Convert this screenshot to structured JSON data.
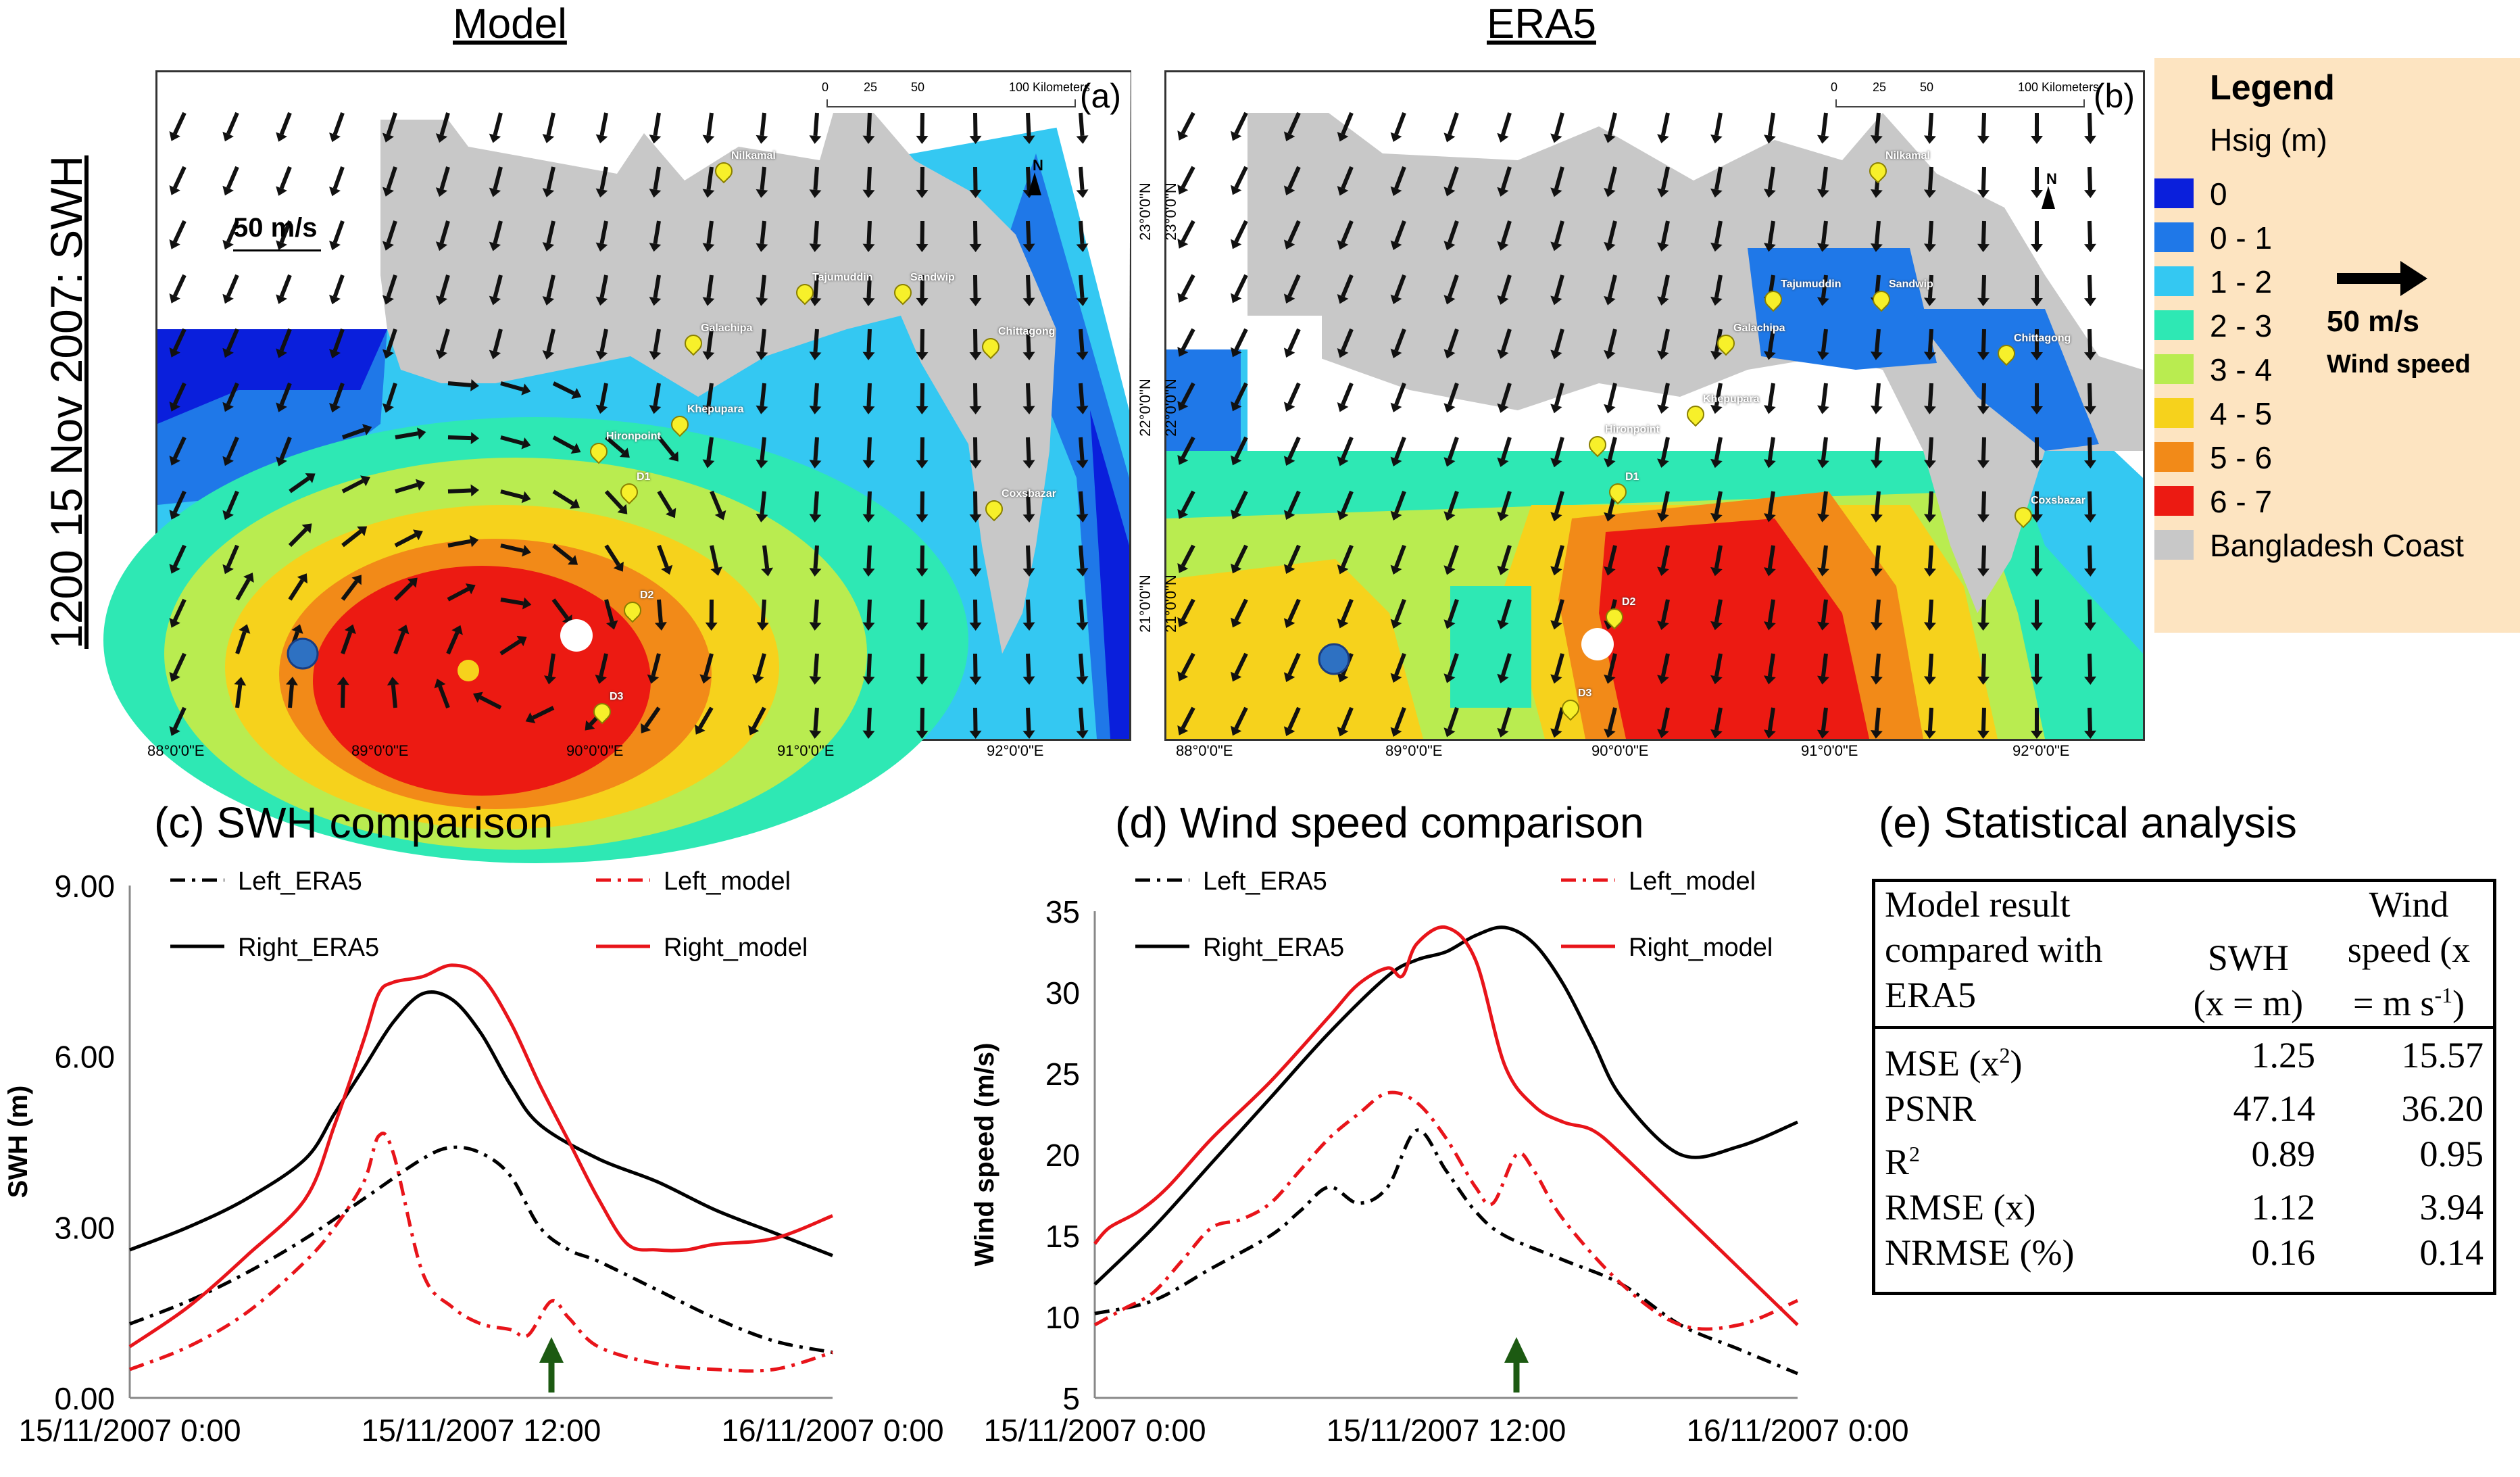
{
  "side_title": "1200 15 Nov 2007: SWH",
  "maps": {
    "left": {
      "title": "Model",
      "panel": "(a)",
      "scale_label": "50 m/s",
      "scalebar": {
        "ticks": [
          "0",
          "25",
          "50",
          "100 Kilometers"
        ]
      },
      "lon_ticks": [
        "88°0'0\"E",
        "89°0'0\"E",
        "90°0'0\"E",
        "91°0'0\"E",
        "92°0'0\"E"
      ],
      "lat_ticks": [
        "23°0'0\"N",
        "22°0'0\"N",
        "21°0'0\"N"
      ],
      "places": [
        "Nilkamal",
        "Tajumuddin",
        "Sandwip",
        "Chittagong",
        "Galachipa",
        "Khepupara",
        "Hironpoint",
        "D1",
        "D2",
        "D3",
        "Coxsbazar"
      ]
    },
    "right": {
      "title": "ERA5",
      "panel": "(b)",
      "scalebar": {
        "ticks": [
          "0",
          "25",
          "50",
          "100 Kilometers"
        ]
      },
      "lon_ticks": [
        "88°0'0\"E",
        "89°0'0\"E",
        "90°0'0\"E",
        "91°0'0\"E",
        "92°0'0\"E"
      ],
      "lat_ticks": [
        "23°0'0\"N",
        "22°0'0\"N",
        "21°0'0\"N"
      ],
      "places": [
        "Nilkamal",
        "Tajumuddin",
        "Sandwip",
        "Chittagong",
        "Galachipa",
        "Khepupara",
        "Hironpoint",
        "D1",
        "D2",
        "D3",
        "Coxsbazar"
      ]
    },
    "north_label": "N"
  },
  "legend": {
    "title": "Legend",
    "subtitle": "Hsig (m)",
    "items": [
      {
        "label": "0",
        "color": "#0a1fdc"
      },
      {
        "label": "0 - 1",
        "color": "#1f78e8"
      },
      {
        "label": "1 - 2",
        "color": "#34c8f2"
      },
      {
        "label": "2 - 3",
        "color": "#2ee8b4"
      },
      {
        "label": "3 - 4",
        "color": "#b9ec50"
      },
      {
        "label": "4 - 5",
        "color": "#f6d21c"
      },
      {
        "label": "5 - 6",
        "color": "#f28a18"
      },
      {
        "label": "6 - 7",
        "color": "#ec1a12"
      },
      {
        "label": "Bangladesh Coast",
        "color": "#c8c8c8"
      }
    ],
    "wind_value": "50 m/s",
    "wind_name": "Wind speed"
  },
  "chart_data": [
    {
      "type": "line",
      "title": "(c) SWH comparison",
      "xlabel": "",
      "ylabel": "SWH (m)",
      "x_ticks": [
        "15/11/2007 0:00",
        "15/11/2007 12:00",
        "16/11/2007 0:00"
      ],
      "y_ticks": [
        "0.00",
        "3.00",
        "6.00",
        "9.00"
      ],
      "xlim": [
        0,
        24
      ],
      "ylim": [
        0,
        9
      ],
      "arrow_at": 14.4,
      "series": [
        {
          "name": "Left_ERA5",
          "color": "#000000",
          "dash": "dashdot",
          "x": [
            0,
            2,
            4,
            6,
            8,
            10,
            11,
            12,
            13,
            14,
            15,
            16,
            18,
            20,
            22,
            24
          ],
          "y": [
            1.3,
            1.7,
            2.2,
            2.8,
            3.5,
            4.2,
            4.4,
            4.3,
            3.9,
            3.0,
            2.6,
            2.4,
            1.9,
            1.4,
            1.0,
            0.8
          ]
        },
        {
          "name": "Left_model",
          "color": "#e8141a",
          "dash": "dashdot",
          "x": [
            0,
            2,
            4,
            6,
            7,
            8,
            8.5,
            9,
            10,
            11,
            12,
            13,
            13.6,
            14.4,
            15,
            16,
            18,
            20,
            22,
            24
          ],
          "y": [
            0.5,
            0.9,
            1.5,
            2.4,
            3.0,
            3.8,
            4.6,
            4.3,
            2.2,
            1.6,
            1.3,
            1.2,
            1.1,
            1.7,
            1.4,
            0.9,
            0.6,
            0.5,
            0.5,
            0.8
          ]
        },
        {
          "name": "Right_ERA5",
          "color": "#000000",
          "dash": "solid",
          "x": [
            0,
            2,
            4,
            6,
            7,
            8,
            9,
            10,
            11,
            12,
            13,
            14,
            16,
            18,
            20,
            22,
            24
          ],
          "y": [
            2.6,
            3.0,
            3.5,
            4.2,
            5.0,
            5.8,
            6.6,
            7.1,
            7.0,
            6.4,
            5.5,
            4.8,
            4.2,
            3.8,
            3.3,
            2.9,
            2.5
          ]
        },
        {
          "name": "Right_model",
          "color": "#e8141a",
          "dash": "solid",
          "x": [
            0,
            2,
            4,
            6,
            7,
            8,
            8.5,
            9,
            10,
            11,
            12,
            13,
            14,
            15,
            16,
            17,
            18,
            19,
            20,
            22,
            24
          ],
          "y": [
            0.9,
            1.6,
            2.5,
            3.5,
            4.8,
            6.3,
            7.1,
            7.3,
            7.4,
            7.6,
            7.4,
            6.6,
            5.5,
            4.5,
            3.5,
            2.7,
            2.6,
            2.6,
            2.7,
            2.8,
            3.2
          ]
        }
      ]
    },
    {
      "type": "line",
      "title": "(d) Wind speed comparison",
      "xlabel": "",
      "ylabel": "Wind speed (m/s)",
      "x_ticks": [
        "15/11/2007 0:00",
        "15/11/2007 12:00",
        "16/11/2007 0:00"
      ],
      "y_ticks": [
        "5",
        "10",
        "15",
        "20",
        "25",
        "30",
        "35"
      ],
      "xlim": [
        0,
        24
      ],
      "ylim": [
        5,
        35
      ],
      "arrow_at": 14.4,
      "series": [
        {
          "name": "Left_ERA5",
          "color": "#000000",
          "dash": "dashdot",
          "x": [
            0,
            2,
            4,
            6,
            7,
            8,
            9,
            10,
            11,
            12,
            13,
            14,
            16,
            18,
            20,
            22,
            24
          ],
          "y": [
            10.2,
            11.0,
            13.0,
            15.0,
            16.5,
            18.0,
            17.0,
            18.0,
            21.5,
            19.0,
            16.5,
            15.0,
            13.5,
            12.0,
            9.5,
            8.0,
            6.5
          ]
        },
        {
          "name": "Left_model",
          "color": "#e8141a",
          "dash": "dashdot",
          "x": [
            0,
            1,
            2,
            3,
            4,
            5,
            6,
            7,
            8,
            9,
            10,
            11,
            12,
            13,
            13.6,
            14.4,
            15,
            16,
            18,
            20,
            22,
            24
          ],
          "y": [
            9.5,
            10.5,
            11.5,
            13.5,
            15.5,
            16.0,
            17.0,
            19.0,
            21.0,
            22.5,
            23.8,
            23.2,
            21.0,
            18.0,
            17.0,
            20.0,
            19.0,
            16.0,
            12.0,
            9.5,
            9.5,
            11.0
          ]
        },
        {
          "name": "Right_ERA5",
          "color": "#000000",
          "dash": "solid",
          "x": [
            0,
            2,
            4,
            6,
            8,
            10,
            11,
            12,
            13,
            14,
            15,
            16,
            17,
            18,
            20,
            22,
            24
          ],
          "y": [
            12.0,
            15.5,
            19.5,
            23.5,
            27.5,
            31.0,
            32.0,
            32.5,
            33.5,
            34.0,
            33.0,
            30.5,
            27.0,
            23.5,
            20.0,
            20.5,
            22.0
          ]
        },
        {
          "name": "Right_model",
          "color": "#e8141a",
          "dash": "solid",
          "x": [
            0,
            0.5,
            1.5,
            2.5,
            4,
            6,
            8,
            9,
            10,
            10.5,
            11,
            12,
            13,
            14,
            15,
            16,
            17,
            18,
            20,
            22,
            24
          ],
          "y": [
            14.5,
            15.5,
            16.5,
            18.0,
            21.0,
            24.5,
            28.5,
            30.5,
            31.5,
            31.0,
            33.0,
            34.0,
            32.0,
            25.5,
            23.0,
            22.0,
            21.5,
            20.0,
            16.5,
            13.0,
            9.5
          ]
        }
      ]
    },
    {
      "type": "table",
      "title": "(e) Statistical analysis",
      "header": [
        "Model result compared with ERA5",
        "SWH (x = m)",
        "Wind speed (x = m s-1)"
      ],
      "header_lines": {
        "c1": [
          "Model result",
          "compared with",
          "ERA5"
        ],
        "c2": [
          "SWH",
          "(x = m)"
        ],
        "c3": [
          "Wind",
          "speed (x",
          "= m s",
          "-1",
          ")"
        ]
      },
      "rows": [
        {
          "metric": "MSE (x",
          "sup": "2",
          "tail": ")",
          "swh": "1.25",
          "wind": "15.57"
        },
        {
          "metric": "PSNR",
          "sup": "",
          "tail": "",
          "swh": "47.14",
          "wind": "36.20"
        },
        {
          "metric": "R",
          "sup": "2",
          "tail": "",
          "swh": "0.89",
          "wind": "0.95"
        },
        {
          "metric": "RMSE (x)",
          "sup": "",
          "tail": "",
          "swh": "1.12",
          "wind": "3.94"
        },
        {
          "metric": "NRMSE (%)",
          "sup": "",
          "tail": "",
          "swh": "0.16",
          "wind": "0.14"
        }
      ]
    }
  ]
}
